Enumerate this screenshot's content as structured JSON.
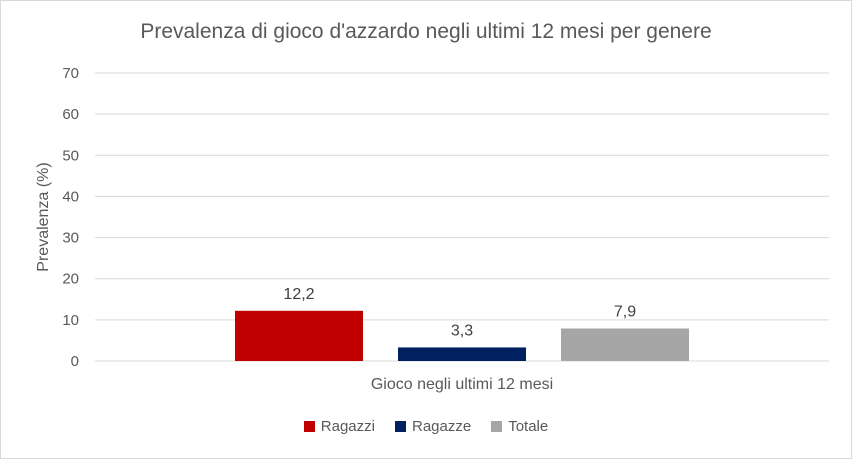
{
  "chart_data": {
    "type": "bar",
    "title": "Prevalenza di gioco d'azzardo negli ultimi 12 mesi per genere",
    "ylabel": "Prevalenza (%)",
    "xlabel": "",
    "categories": [
      "Gioco negli ultimi 12 mesi"
    ],
    "series": [
      {
        "name": "Ragazzi",
        "values": [
          12.2
        ],
        "label": "12,2",
        "color": "#c00000"
      },
      {
        "name": "Ragazze",
        "values": [
          3.3
        ],
        "label": "3,3",
        "color": "#002060"
      },
      {
        "name": "Totale",
        "values": [
          7.9
        ],
        "label": "7,9",
        "color": "#a6a6a6"
      }
    ],
    "ylim": [
      0,
      70
    ],
    "yticks": [
      0,
      10,
      20,
      30,
      40,
      50,
      60,
      70
    ],
    "grid": true,
    "legend_position": "bottom"
  }
}
